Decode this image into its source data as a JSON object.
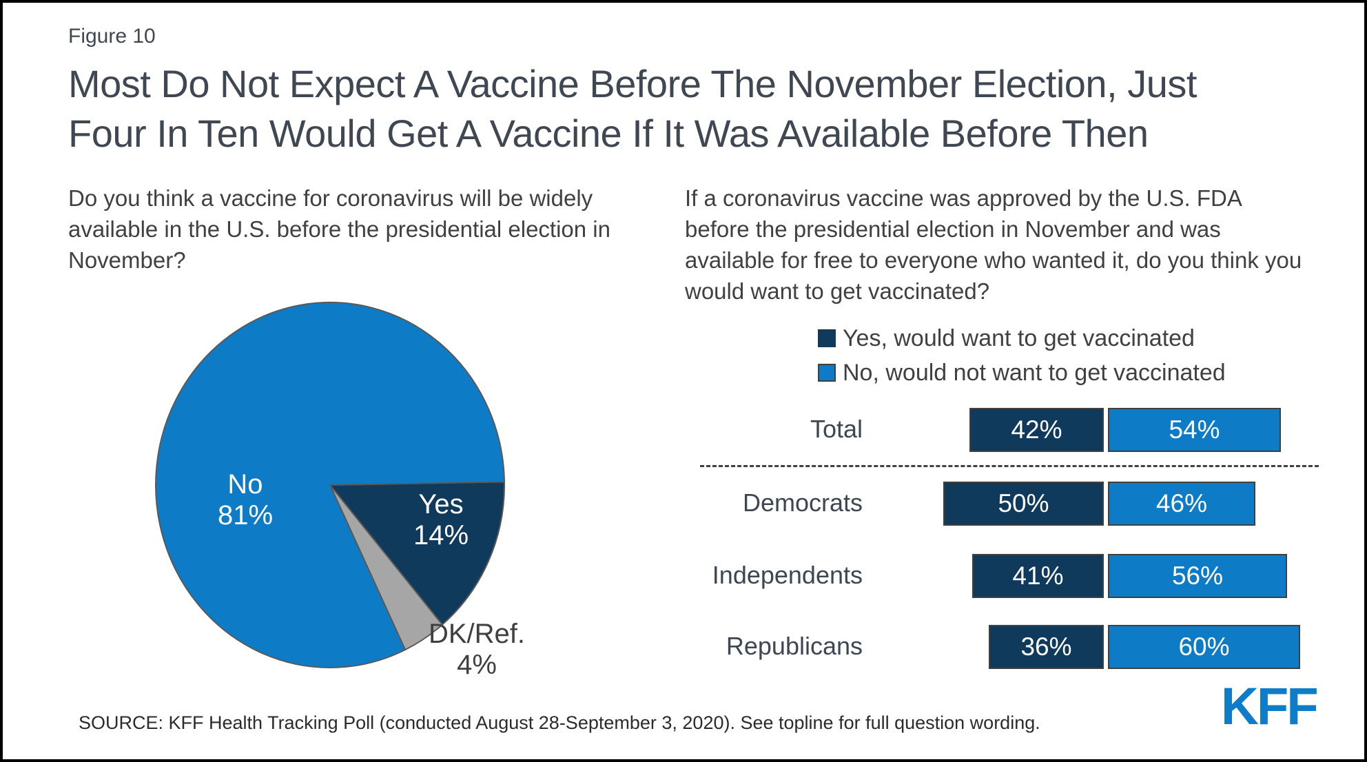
{
  "figure_label": "Figure 10",
  "title_line1": "Most Do Not Expect A Vaccine Before The November Election, Just",
  "title_line2": "Four In Ten Would Get A Vaccine If It Was Available Before Then",
  "source": "SOURCE: KFF Health Tracking Poll (conducted August 28-September 3, 2020). See topline for full question wording.",
  "logo": "KFF",
  "colors": {
    "dark_navy": "#103A5C",
    "blue": "#0E7BC6",
    "gray": "#A6A6A6",
    "pie_outline": "#595959",
    "bar_outline": "#404040",
    "title_text": "#3F4852",
    "body_text": "#404040",
    "white": "#FFFFFF",
    "kff_blue": "#0D7CC9"
  },
  "chart_data": [
    {
      "type": "pie",
      "question": "Do you think a vaccine for coronavirus will be widely available in the U.S. before the presidential election in November?",
      "start_angle_deg": 1,
      "direction": "clockwise",
      "slices": [
        {
          "label": "Yes",
          "value": 14,
          "value_text": "14%",
          "color_key": "dark_navy",
          "label_color": "white"
        },
        {
          "label": "DK/Ref.",
          "value": 4,
          "value_text": "4%",
          "color_key": "gray",
          "label_color": "dark"
        },
        {
          "label": "No",
          "value": 81,
          "value_text": "81%",
          "color_key": "blue",
          "label_color": "white"
        }
      ]
    },
    {
      "type": "bar",
      "orientation": "horizontal-diverging",
      "question": "If a coronavirus vaccine was approved by the U.S. FDA before the presidential election in November and was available for free to everyone who wanted it, do you think you would want to get vaccinated?",
      "legend": [
        {
          "label": "Yes, would want to get vaccinated",
          "color_key": "dark_navy"
        },
        {
          "label": "No, would not want to get vaccinated",
          "color_key": "blue"
        }
      ],
      "categories": [
        "Total",
        "Democrats",
        "Independents",
        "Republicans"
      ],
      "series": [
        {
          "name": "Yes, would want to get vaccinated",
          "color_key": "dark_navy",
          "values": [
            42,
            50,
            41,
            36
          ]
        },
        {
          "name": "No, would not want to get vaccinated",
          "color_key": "blue",
          "values": [
            54,
            46,
            56,
            60
          ]
        }
      ],
      "value_suffix": "%",
      "separator_after_category": "Total",
      "legend_position": "top"
    }
  ]
}
